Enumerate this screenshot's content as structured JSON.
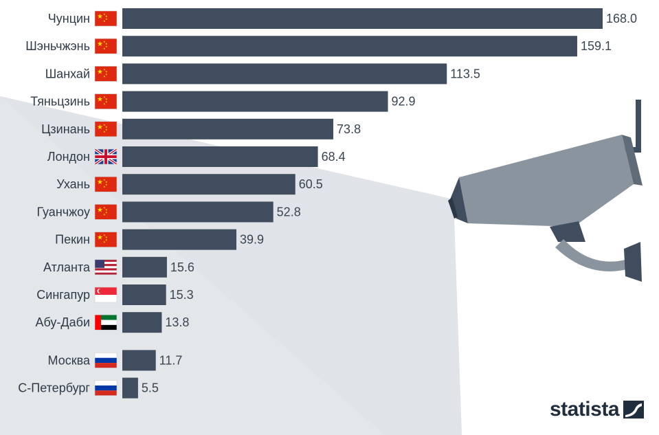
{
  "brand": {
    "name": "statista"
  },
  "colors": {
    "bar": "#3f4d5e",
    "text": "#2f3a47",
    "light_beam": "#e3e6e9",
    "camera": "#8a949e",
    "camera_dark": "#3f4d5e"
  },
  "chart_data": {
    "type": "bar",
    "orientation": "horizontal",
    "title": "",
    "xlabel": "",
    "ylabel": "",
    "xlim": [
      0,
      168
    ],
    "grid": false,
    "legend": "none",
    "categories": [
      "Чунцин",
      "Шэньчжэнь",
      "Шанхай",
      "Тяньцзинь",
      "Цзинань",
      "Лондон",
      "Ухань",
      "Гуанчжоу",
      "Пекин",
      "Атланта",
      "Сингапур",
      "Абу-Даби",
      "Москва",
      "С-Петербург"
    ],
    "values": [
      168.0,
      159.1,
      113.5,
      92.9,
      73.8,
      68.4,
      60.5,
      52.8,
      39.9,
      15.6,
      15.3,
      13.8,
      11.7,
      5.5
    ],
    "value_labels": [
      "168.0",
      "159.1",
      "113.5",
      "92.9",
      "73.8",
      "68.4",
      "60.5",
      "52.8",
      "39.9",
      "15.6",
      "15.3",
      "13.8",
      "11.7",
      "5.5"
    ],
    "flags": [
      "cn",
      "cn",
      "cn",
      "cn",
      "cn",
      "gb",
      "cn",
      "cn",
      "cn",
      "us",
      "sg",
      "ae",
      "ru",
      "ru"
    ],
    "group_gap_before_index": 12
  }
}
